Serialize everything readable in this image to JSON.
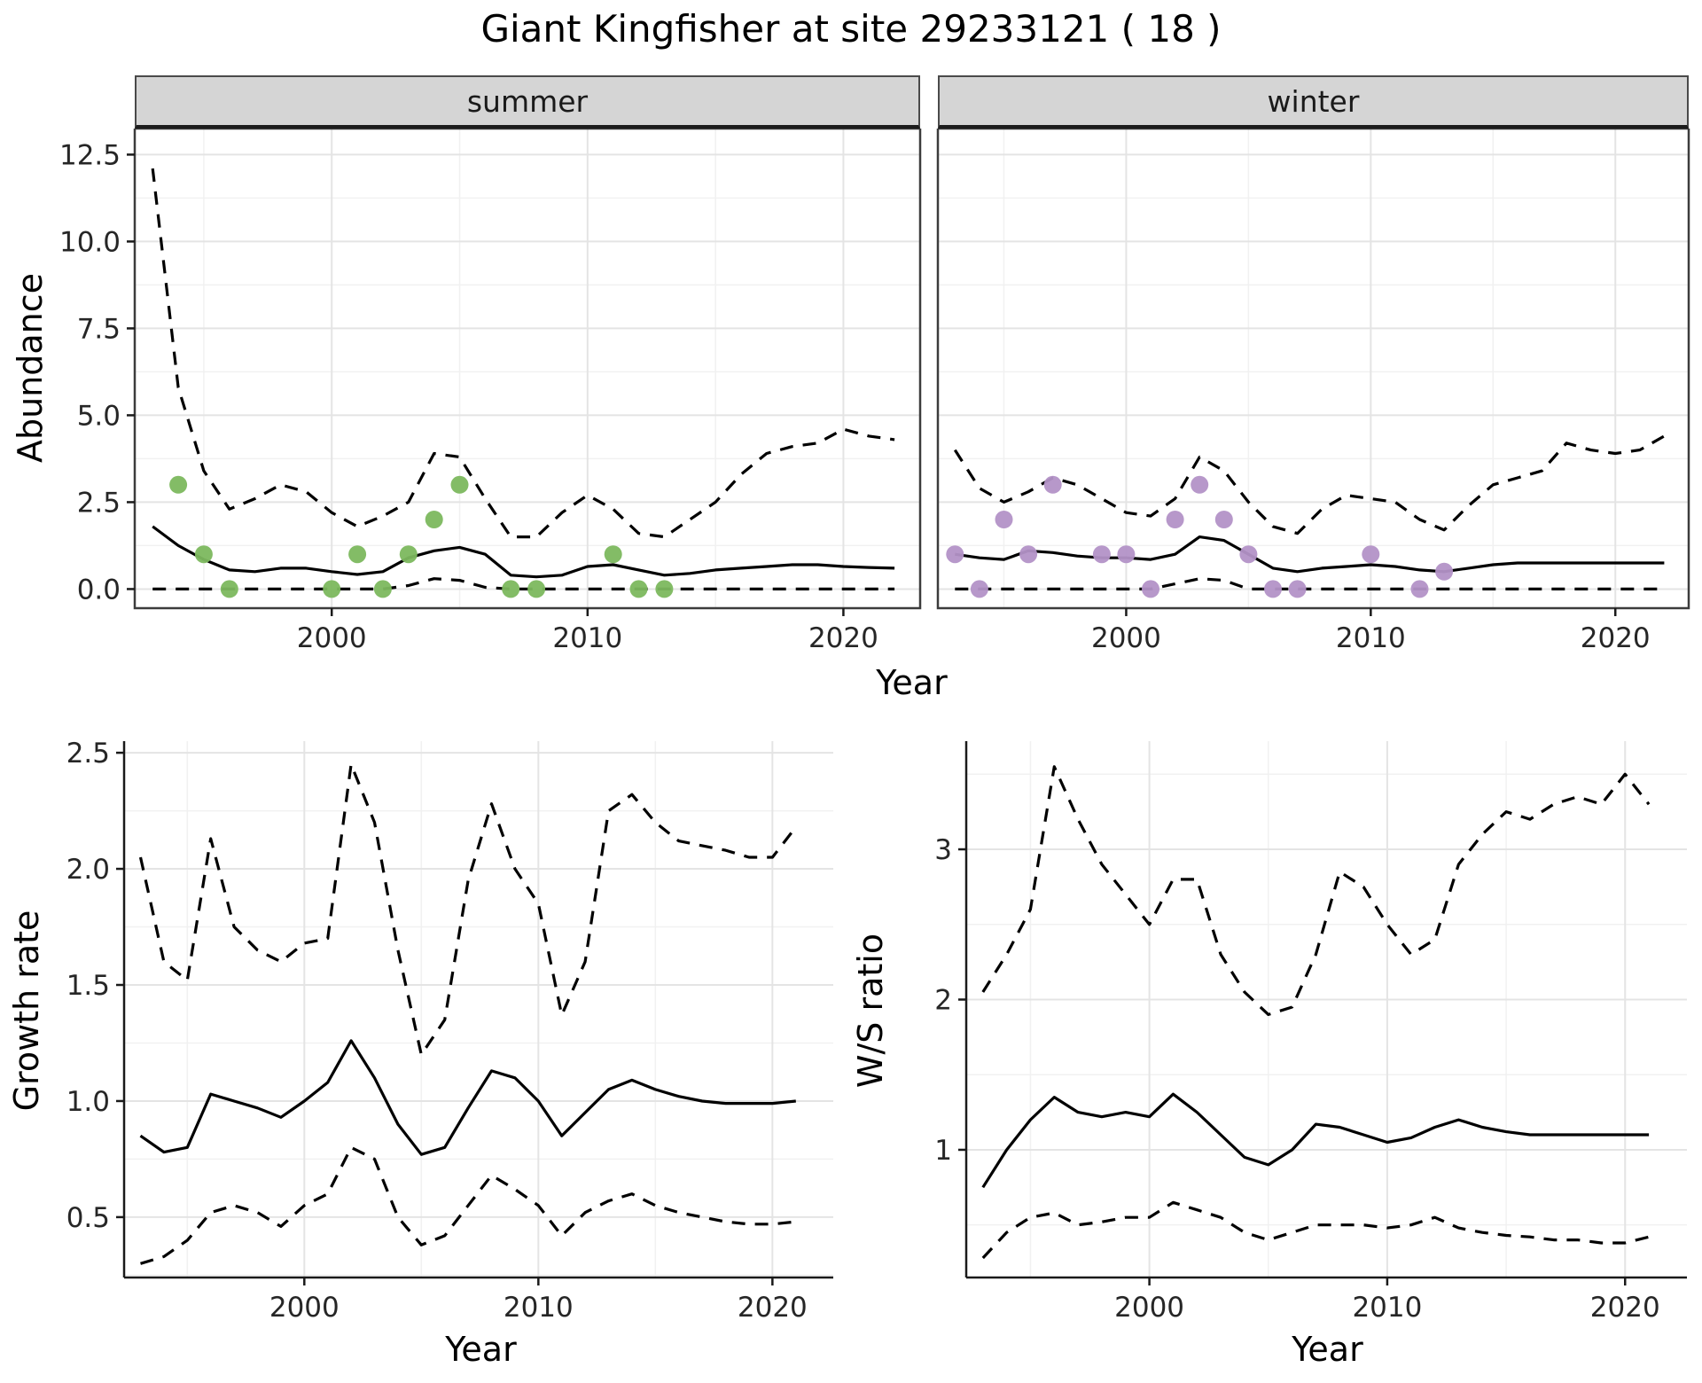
{
  "figure": {
    "title": "Giant Kingfisher at site 29233121 ( 18 )",
    "top": {
      "ylabel": "Abundance",
      "xlabel": "Year",
      "facets": [
        {
          "label": "summer"
        },
        {
          "label": "winter"
        }
      ]
    },
    "growth": {
      "ylabel": "Growth rate",
      "xlabel": "Year"
    },
    "ws": {
      "ylabel": "W/S ratio",
      "xlabel": "Year"
    }
  },
  "colors": {
    "line": "#000000",
    "summer_points": "#7cb85e",
    "winter_points": "#b392c7",
    "grid_major": "#e4e4e4",
    "grid_minor": "#f1f1f1",
    "strip_bg": "#d5d5d5"
  },
  "chart_data": [
    {
      "id": "summer",
      "type": "line",
      "title": "summer",
      "xlabel": "Year",
      "ylabel": "Abundance",
      "xlim": [
        1992.3,
        2023.0
      ],
      "ylim": [
        -0.55,
        13.25
      ],
      "xticks": [
        2000,
        2010,
        2020
      ],
      "xtick_labels": [
        "2000",
        "2010",
        "2020"
      ],
      "yticks": [
        0,
        2.5,
        5,
        7.5,
        10,
        12.5
      ],
      "ytick_labels": [
        "0.0",
        "2.5",
        "5.0",
        "7.5",
        "10.0",
        "12.5"
      ],
      "x": [
        1993,
        1994,
        1995,
        1996,
        1997,
        1998,
        1999,
        2000,
        2001,
        2002,
        2003,
        2004,
        2005,
        2006,
        2007,
        2008,
        2009,
        2010,
        2011,
        2012,
        2013,
        2014,
        2015,
        2016,
        2017,
        2018,
        2019,
        2020,
        2021,
        2022
      ],
      "series": [
        {
          "name": "upper-ci",
          "style": "dashed",
          "values": [
            12.1,
            5.8,
            3.4,
            2.3,
            2.6,
            3.0,
            2.8,
            2.2,
            1.8,
            2.1,
            2.5,
            3.9,
            3.8,
            2.6,
            1.5,
            1.5,
            2.2,
            2.7,
            2.3,
            1.6,
            1.5,
            2.0,
            2.5,
            3.3,
            3.9,
            4.1,
            4.2,
            4.6,
            4.4,
            4.3
          ]
        },
        {
          "name": "mean",
          "style": "solid",
          "values": [
            1.8,
            1.25,
            0.85,
            0.55,
            0.5,
            0.6,
            0.6,
            0.5,
            0.42,
            0.5,
            0.9,
            1.1,
            1.2,
            1.0,
            0.4,
            0.35,
            0.4,
            0.65,
            0.7,
            0.55,
            0.4,
            0.45,
            0.55,
            0.6,
            0.65,
            0.7,
            0.7,
            0.65,
            0.62,
            0.6
          ]
        },
        {
          "name": "lower-ci",
          "style": "dashed",
          "values": [
            0,
            0,
            0,
            0,
            0,
            0,
            0,
            0,
            0,
            0,
            0.1,
            0.3,
            0.25,
            0.05,
            0,
            0,
            0,
            0,
            0,
            0,
            0,
            0,
            0,
            0,
            0,
            0,
            0,
            0,
            0,
            0
          ]
        }
      ],
      "points": {
        "name": "observations",
        "color_key": "summer_points",
        "x": [
          1994,
          1995,
          1996,
          2000,
          2001,
          2002,
          2003,
          2004,
          2005,
          2007,
          2008,
          2011,
          2012,
          2013
        ],
        "y": [
          3,
          1,
          0,
          0,
          1,
          0,
          1,
          2,
          3,
          0,
          0,
          1,
          0,
          0
        ]
      }
    },
    {
      "id": "winter",
      "type": "line",
      "title": "winter",
      "xlabel": "Year",
      "ylabel": "Abundance",
      "xlim": [
        1992.3,
        2023.0
      ],
      "ylim": [
        -0.55,
        13.25
      ],
      "xticks": [
        2000,
        2010,
        2020
      ],
      "xtick_labels": [
        "2000",
        "2010",
        "2020"
      ],
      "yticks": [
        0,
        2.5,
        5,
        7.5,
        10,
        12.5
      ],
      "ytick_labels": [
        "0.0",
        "2.5",
        "5.0",
        "7.5",
        "10.0",
        "12.5"
      ],
      "x": [
        1993,
        1994,
        1995,
        1996,
        1997,
        1998,
        1999,
        2000,
        2001,
        2002,
        2003,
        2004,
        2005,
        2006,
        2007,
        2008,
        2009,
        2010,
        2011,
        2012,
        2013,
        2014,
        2015,
        2016,
        2017,
        2018,
        2019,
        2020,
        2021,
        2022
      ],
      "series": [
        {
          "name": "upper-ci",
          "style": "dashed",
          "values": [
            4.0,
            2.9,
            2.5,
            2.8,
            3.2,
            3.0,
            2.6,
            2.2,
            2.1,
            2.6,
            3.8,
            3.4,
            2.5,
            1.8,
            1.6,
            2.3,
            2.7,
            2.6,
            2.5,
            2.0,
            1.7,
            2.4,
            3.0,
            3.2,
            3.4,
            4.2,
            4.0,
            3.9,
            4.0,
            4.4
          ]
        },
        {
          "name": "mean",
          "style": "solid",
          "values": [
            1.0,
            0.9,
            0.85,
            1.1,
            1.05,
            0.95,
            0.9,
            0.9,
            0.85,
            1.0,
            1.5,
            1.4,
            1.0,
            0.6,
            0.5,
            0.6,
            0.65,
            0.7,
            0.65,
            0.55,
            0.5,
            0.6,
            0.7,
            0.75,
            0.75,
            0.75,
            0.75,
            0.75,
            0.75,
            0.75
          ]
        },
        {
          "name": "lower-ci",
          "style": "dashed",
          "values": [
            0,
            0,
            0,
            0,
            0,
            0,
            0,
            0,
            0,
            0.15,
            0.3,
            0.25,
            0,
            0,
            0,
            0,
            0,
            0,
            0,
            0,
            0,
            0,
            0,
            0,
            0,
            0,
            0,
            0,
            0,
            0
          ]
        }
      ],
      "points": {
        "name": "observations",
        "color_key": "winter_points",
        "x": [
          1993,
          1994,
          1995,
          1996,
          1997,
          1999,
          2000,
          2001,
          2002,
          2003,
          2004,
          2005,
          2006,
          2007,
          2010,
          2012,
          2013
        ],
        "y": [
          1,
          0,
          2,
          1,
          3,
          1,
          1,
          0,
          2,
          3,
          2,
          1,
          0,
          0,
          1,
          0,
          0.5
        ]
      }
    },
    {
      "id": "growth",
      "type": "line",
      "title": "",
      "xlabel": "Year",
      "ylabel": "Growth rate",
      "xlim": [
        1992.3,
        2022.6
      ],
      "ylim": [
        0.24,
        2.55
      ],
      "xticks": [
        2000,
        2010,
        2020
      ],
      "xtick_labels": [
        "2000",
        "2010",
        "2020"
      ],
      "yticks": [
        0.5,
        1.0,
        1.5,
        2.0,
        2.5
      ],
      "ytick_labels": [
        "0.5",
        "1.0",
        "1.5",
        "2.0",
        "2.5"
      ],
      "x": [
        1993,
        1994,
        1995,
        1996,
        1997,
        1998,
        1999,
        2000,
        2001,
        2002,
        2003,
        2004,
        2005,
        2006,
        2007,
        2008,
        2009,
        2010,
        2011,
        2012,
        2013,
        2014,
        2015,
        2016,
        2017,
        2018,
        2019,
        2020,
        2021
      ],
      "series": [
        {
          "name": "upper-ci",
          "style": "dashed",
          "values": [
            2.05,
            1.6,
            1.52,
            2.13,
            1.75,
            1.65,
            1.6,
            1.68,
            1.7,
            2.45,
            2.2,
            1.65,
            1.2,
            1.35,
            1.95,
            2.28,
            2.0,
            1.85,
            1.37,
            1.6,
            2.25,
            2.32,
            2.2,
            2.12,
            2.1,
            2.08,
            2.05,
            2.05,
            2.18
          ]
        },
        {
          "name": "mean",
          "style": "solid",
          "values": [
            0.85,
            0.78,
            0.8,
            1.03,
            1.0,
            0.97,
            0.93,
            1.0,
            1.08,
            1.26,
            1.1,
            0.9,
            0.77,
            0.8,
            0.97,
            1.13,
            1.1,
            1.0,
            0.85,
            0.95,
            1.05,
            1.09,
            1.05,
            1.02,
            1.0,
            0.99,
            0.99,
            0.99,
            1.0
          ]
        },
        {
          "name": "lower-ci",
          "style": "dashed",
          "values": [
            0.3,
            0.33,
            0.4,
            0.52,
            0.55,
            0.52,
            0.46,
            0.55,
            0.6,
            0.8,
            0.75,
            0.5,
            0.38,
            0.42,
            0.55,
            0.68,
            0.62,
            0.55,
            0.42,
            0.52,
            0.57,
            0.6,
            0.55,
            0.52,
            0.5,
            0.48,
            0.47,
            0.47,
            0.48
          ]
        }
      ]
    },
    {
      "id": "ws",
      "type": "line",
      "title": "",
      "xlabel": "Year",
      "ylabel": "W/S ratio",
      "xlim": [
        1992.3,
        2022.6
      ],
      "ylim": [
        0.15,
        3.72
      ],
      "xticks": [
        2000,
        2010,
        2020
      ],
      "xtick_labels": [
        "2000",
        "2010",
        "2020"
      ],
      "yticks": [
        1,
        2,
        3
      ],
      "ytick_labels": [
        "1",
        "2",
        "3"
      ],
      "x": [
        1993,
        1994,
        1995,
        1996,
        1997,
        1998,
        1999,
        2000,
        2001,
        2002,
        2003,
        2004,
        2005,
        2006,
        2007,
        2008,
        2009,
        2010,
        2011,
        2012,
        2013,
        2014,
        2015,
        2016,
        2017,
        2018,
        2019,
        2020,
        2021
      ],
      "series": [
        {
          "name": "upper-ci",
          "style": "dashed",
          "values": [
            2.05,
            2.3,
            2.6,
            3.55,
            3.2,
            2.9,
            2.7,
            2.5,
            2.8,
            2.8,
            2.3,
            2.05,
            1.9,
            1.95,
            2.3,
            2.85,
            2.75,
            2.5,
            2.3,
            2.4,
            2.9,
            3.1,
            3.25,
            3.2,
            3.3,
            3.35,
            3.3,
            3.5,
            3.3
          ]
        },
        {
          "name": "mean",
          "style": "solid",
          "values": [
            0.75,
            1.0,
            1.2,
            1.35,
            1.25,
            1.22,
            1.25,
            1.22,
            1.37,
            1.25,
            1.1,
            0.95,
            0.9,
            1.0,
            1.17,
            1.15,
            1.1,
            1.05,
            1.08,
            1.15,
            1.2,
            1.15,
            1.12,
            1.1,
            1.1,
            1.1,
            1.1,
            1.1,
            1.1
          ]
        },
        {
          "name": "lower-ci",
          "style": "dashed",
          "values": [
            0.28,
            0.45,
            0.55,
            0.58,
            0.5,
            0.52,
            0.55,
            0.55,
            0.65,
            0.6,
            0.55,
            0.45,
            0.4,
            0.45,
            0.5,
            0.5,
            0.5,
            0.48,
            0.5,
            0.55,
            0.48,
            0.45,
            0.43,
            0.42,
            0.4,
            0.4,
            0.38,
            0.38,
            0.42
          ]
        }
      ]
    }
  ]
}
